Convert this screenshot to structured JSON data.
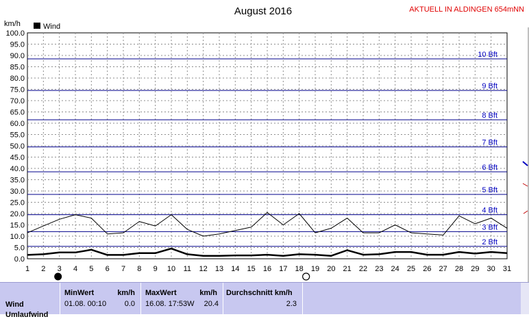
{
  "header": {
    "title": "August 2016",
    "station": "AKTUELL IN ALDINGEN 654mNN"
  },
  "chart_data": {
    "type": "line",
    "title": "August 2016",
    "ylabel": "km/h",
    "ylim": [
      0,
      100
    ],
    "y_ticks": [
      "0.0",
      "5.0",
      "10.0",
      "15.0",
      "20.0",
      "25.0",
      "30.0",
      "35.0",
      "40.0",
      "45.0",
      "50.0",
      "55.0",
      "60.0",
      "65.0",
      "70.0",
      "75.0",
      "80.0",
      "85.0",
      "90.0",
      "95.0",
      "100.0"
    ],
    "x": [
      1,
      2,
      3,
      4,
      5,
      6,
      7,
      8,
      9,
      10,
      11,
      12,
      13,
      14,
      15,
      16,
      17,
      18,
      19,
      20,
      21,
      22,
      23,
      24,
      25,
      26,
      27,
      28,
      29,
      30,
      31
    ],
    "legend": [
      "Wind"
    ],
    "series": [
      {
        "name": "Wind",
        "kind": "average",
        "color": "#000000",
        "values": [
          1.7,
          2.0,
          2.8,
          2.8,
          4.0,
          1.7,
          1.7,
          2.5,
          2.5,
          4.5,
          2.0,
          1.3,
          1.3,
          1.5,
          1.5,
          1.8,
          1.3,
          2.0,
          1.8,
          1.3,
          3.8,
          1.8,
          2.0,
          3.0,
          3.0,
          1.8,
          1.8,
          3.0,
          2.3,
          3.0,
          2.5
        ]
      },
      {
        "kind": "max",
        "color": "#000000",
        "values": [
          11.5,
          14.5,
          17.5,
          19.5,
          18.0,
          11.0,
          11.5,
          16.5,
          14.5,
          19.5,
          13.0,
          10.0,
          11.0,
          12.5,
          14.0,
          20.5,
          15.0,
          20.0,
          11.5,
          13.5,
          18.0,
          11.5,
          11.5,
          15.0,
          11.5,
          11.0,
          10.5,
          19.0,
          15.5,
          18.0,
          13.5
        ]
      }
    ],
    "beaufort_lines": [
      {
        "label": "2 Bft",
        "value": 5.5
      },
      {
        "label": "3 Bft",
        "value": 12.0
      },
      {
        "label": "4 Bft",
        "value": 19.5
      },
      {
        "label": "5 Bft",
        "value": 28.5
      },
      {
        "label": "6 Bft",
        "value": 38.5
      },
      {
        "label": "7 Bft",
        "value": 49.5
      },
      {
        "label": "8 Bft",
        "value": 61.5
      },
      {
        "label": "9 Bft",
        "value": 74.5
      },
      {
        "label": "10 Bft",
        "value": 88.5
      }
    ],
    "grid": true,
    "legend_position": "top-left",
    "markers": [
      {
        "day": 3,
        "kind": "new-moon"
      },
      {
        "day": 18,
        "kind": "full-moon"
      }
    ]
  },
  "stats": {
    "row_label": "Wind",
    "row_label2": "Umlaufwind",
    "min": {
      "title": "MinWert",
      "unit": "km/h",
      "time": "01.08.  00:10",
      "value": "0.0"
    },
    "max": {
      "title": "MaxWert",
      "unit": "km/h",
      "time": "16.08.  17:53W",
      "value": "20.4"
    },
    "avg": {
      "title": "Durchschnitt km/h",
      "value": "2.3"
    }
  }
}
